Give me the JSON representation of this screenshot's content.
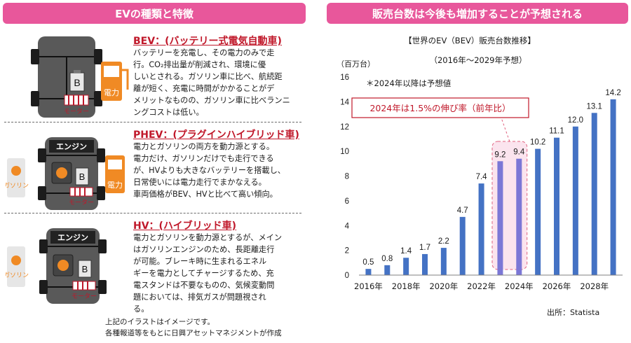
{
  "left": {
    "banner": "EVの種類と特徴",
    "types": [
      {
        "title": "BEV：(バッテリー式電気自動車)",
        "lines": [
          "バッテリーを充電し、その電力のみで走",
          "行。CO₂排出量が削減され、環境に優",
          "しいとされる。ガソリン車に比べ、航続距",
          "離が短く、充電に時間がかかることがデ",
          "メリットなものの、ガソリン車に比べランニ",
          "ングコストは低い。"
        ]
      },
      {
        "title": "PHEV：(プラグインハイブリッド車)",
        "lines": [
          "電力とガソリンの両方を動力源とする。",
          "電力だけ、ガソリンだけでも走行できる",
          "が、HVよりも大きなバッテリーを搭載し、",
          "日常使いには電力走行でまかなえる。",
          "車両価格がBEV、HVと比べて高い傾向。"
        ]
      },
      {
        "title": "HV：(ハイブリッド車)",
        "lines": [
          "電力とガソリンを動力源とするが、メイン",
          "はガソリンエンジンのため、長距離走行",
          "が可能。ブレーキ時に生まれるエネル",
          "ギーを電力としてチャージするため、充",
          "電スタンドは不要なものの、気候変動問",
          "題においては、排気ガスが問題視され",
          "る。"
        ]
      }
    ],
    "illustration_labels": {
      "battery": "B",
      "motor": "モーター",
      "engine": "エンジン",
      "electric": "電力",
      "gasoline": "ガソリン"
    },
    "footnotes": [
      "上記のイラストはイメージです。",
      "各種報道等をもとに日興アセットマネジメントが作成"
    ]
  },
  "right": {
    "banner": "販売台数は今後も増加することが予想される",
    "source": "出所：Statista"
  },
  "colors": {
    "banner": "#e8579b",
    "bar_actual": "#4472c4",
    "bar_highlight": "#7b77d6",
    "highlight_fill": "#fbe4ee",
    "highlight_border": "#e0607e",
    "title_red": "#c0182a",
    "pump_orange": "#f08a24"
  },
  "chart_data": {
    "type": "bar",
    "title": "【世界のEV（BEV）販売台数推移】",
    "subtitle": "（2016年～2029年予想）",
    "ylabel": "（百万台）",
    "note": "＊2024年以降は予想値",
    "annotation": "2024年は1.5%の伸び率（前年比）",
    "categories": [
      "2016年",
      "2017年",
      "2018年",
      "2019年",
      "2020年",
      "2021年",
      "2022年",
      "2023年",
      "2024年",
      "2025年",
      "2026年",
      "2027年",
      "2028年",
      "2029年"
    ],
    "x_tick_labels": [
      "2016年",
      "2018年",
      "2020年",
      "2022年",
      "2024年",
      "2026年",
      "2028年"
    ],
    "values": [
      0.5,
      0.8,
      1.4,
      1.7,
      2.2,
      4.7,
      7.4,
      9.2,
      9.4,
      10.2,
      11.1,
      12.0,
      13.1,
      14.2
    ],
    "value_labels": [
      "0.5",
      "0.8",
      "1.4",
      "1.7",
      "2.2",
      "4.7",
      "7.4",
      "9.2",
      "9.4",
      "10.2",
      "11.1",
      "12.0",
      "13.1",
      "14.2"
    ],
    "y_ticks": [
      0,
      2,
      4,
      6,
      8,
      10,
      12,
      14,
      16
    ],
    "ylim": [
      0,
      16
    ],
    "highlight_categories": [
      "2023年",
      "2024年"
    ],
    "grid": false
  }
}
